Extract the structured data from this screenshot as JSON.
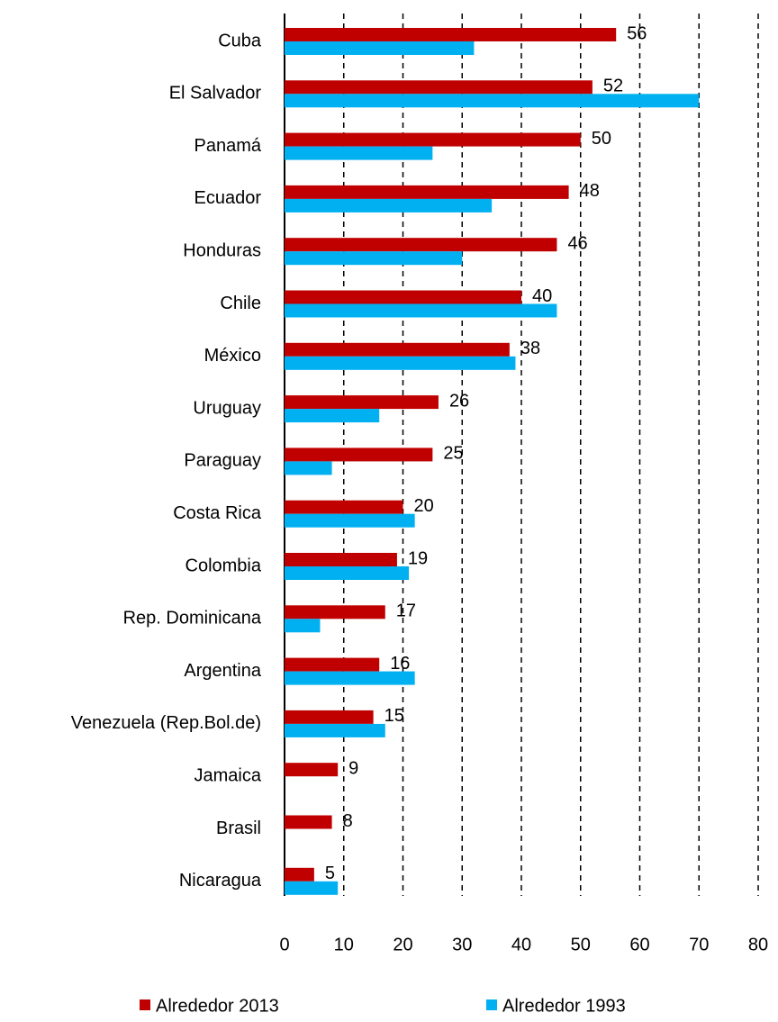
{
  "chart_data": {
    "type": "bar",
    "orientation": "horizontal",
    "categories": [
      "Cuba",
      "El Salvador",
      "Panamá",
      "Ecuador",
      "Honduras",
      "Chile",
      "México",
      "Uruguay",
      "Paraguay",
      "Costa Rica",
      "Colombia",
      "Rep. Dominicana",
      "Argentina",
      "Venezuela (Rep.Bol.de)",
      "Jamaica",
      "Brasil",
      "Nicaragua"
    ],
    "series": [
      {
        "name": "Alrededor 2013",
        "color": "#c00000",
        "values": [
          56,
          52,
          50,
          48,
          46,
          40,
          38,
          26,
          25,
          20,
          19,
          17,
          16,
          15,
          9,
          8,
          5
        ]
      },
      {
        "name": "Alrededor 1993",
        "color": "#00b0f0",
        "values": [
          32,
          70,
          25,
          35,
          30,
          46,
          39,
          16,
          8,
          22,
          21,
          6,
          22,
          17,
          null,
          null,
          9
        ]
      }
    ],
    "data_labels_series": 0,
    "xlim": [
      0,
      80
    ],
    "xticks": [
      0,
      10,
      20,
      30,
      40,
      50,
      60,
      70,
      80
    ],
    "grid": true,
    "legend": "bottom"
  }
}
